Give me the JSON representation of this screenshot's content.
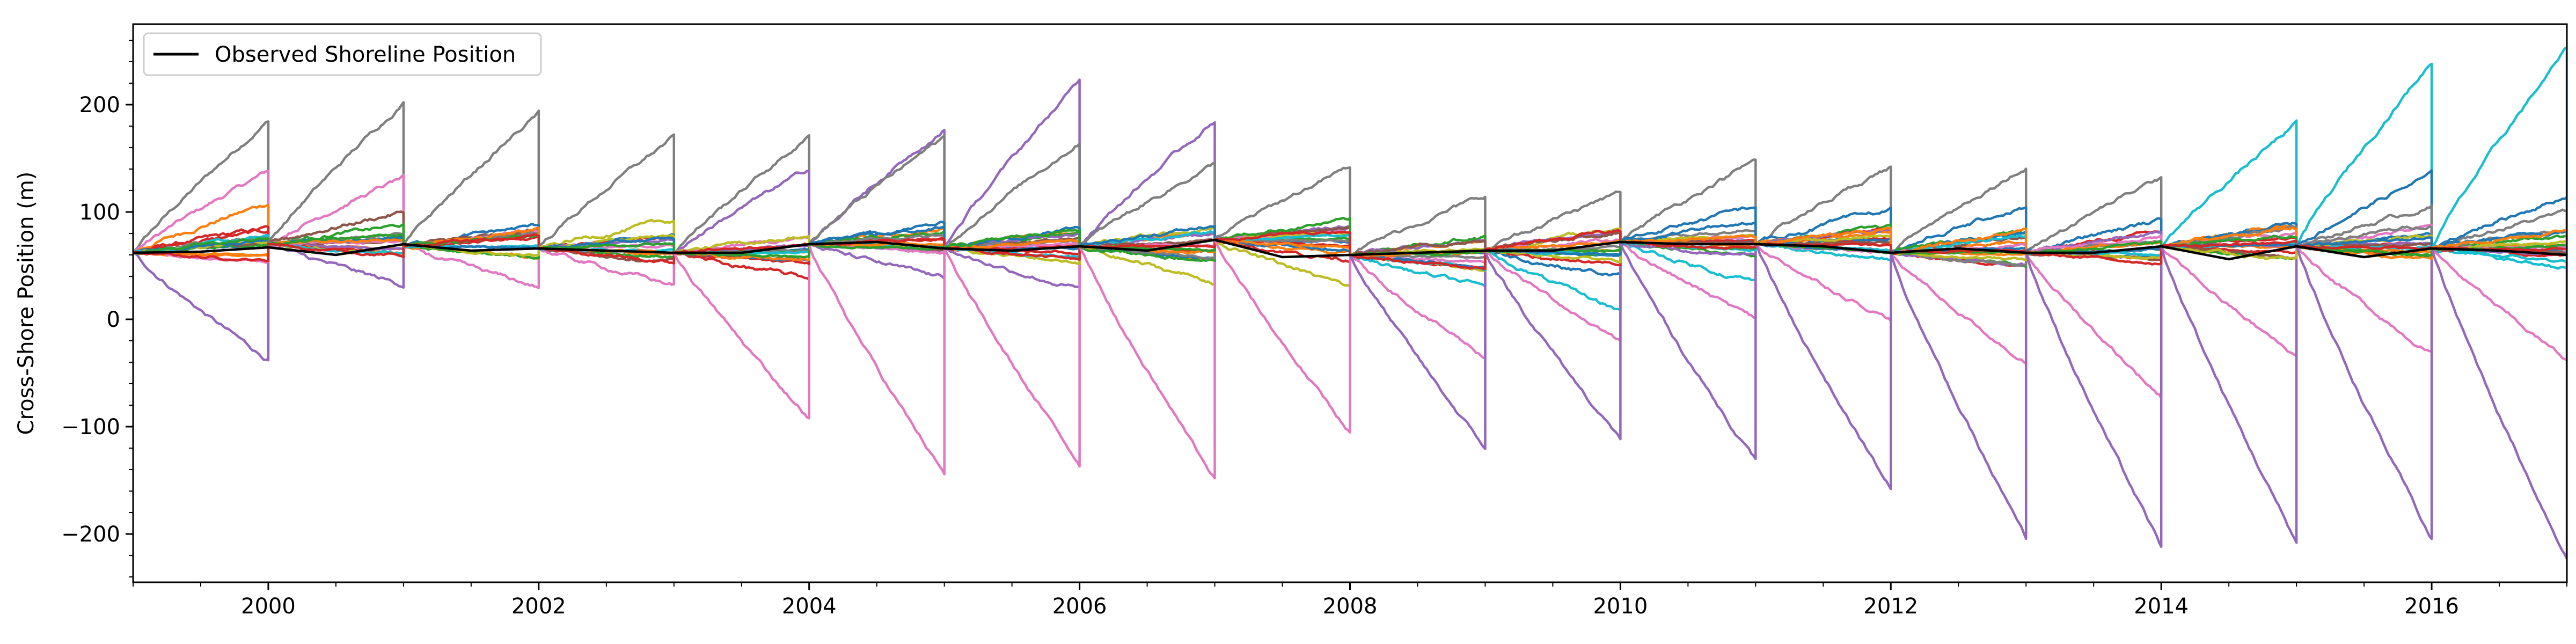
{
  "chart_data": {
    "type": "line",
    "title": "",
    "xlabel": "",
    "ylabel": "Cross-Shore Position (m)",
    "xlim": [
      1999.0,
      2017.0
    ],
    "ylim": [
      -245,
      275
    ],
    "x_ticks": [
      2000,
      2002,
      2004,
      2006,
      2008,
      2010,
      2012,
      2014,
      2016
    ],
    "x_tick_labels": [
      "2000",
      "2002",
      "2004",
      "2006",
      "2008",
      "2010",
      "2012",
      "2014",
      "2016"
    ],
    "y_ticks": [
      -200,
      -100,
      0,
      100,
      200
    ],
    "y_tick_labels": [
      "−200",
      "−100",
      "0",
      "100",
      "200"
    ],
    "grid": false,
    "legend": {
      "placement": "top-left",
      "entries": [
        "Observed Shoreline Position"
      ]
    },
    "observed": {
      "name": "Observed Shoreline Position",
      "color": "#000000",
      "x": [
        1999.0,
        1999.5,
        2000.0,
        2000.5,
        2001.0,
        2001.5,
        2002.0,
        2002.5,
        2003.0,
        2003.5,
        2004.0,
        2004.5,
        2005.0,
        2005.5,
        2006.0,
        2006.5,
        2007.0,
        2007.5,
        2008.0,
        2008.5,
        2009.0,
        2009.5,
        2010.0,
        2010.5,
        2011.0,
        2011.5,
        2012.0,
        2012.5,
        2013.0,
        2013.5,
        2014.0,
        2014.5,
        2015.0,
        2015.5,
        2016.0,
        2016.5,
        2017.0
      ],
      "y": [
        62,
        63,
        67,
        60,
        70,
        64,
        66,
        64,
        62,
        62,
        70,
        72,
        66,
        64,
        68,
        64,
        74,
        58,
        60,
        62,
        64,
        64,
        72,
        70,
        70,
        68,
        62,
        66,
        62,
        62,
        68,
        56,
        68,
        58,
        66,
        64,
        60
      ]
    },
    "ensemble_colors": [
      "#1f77b4",
      "#ff7f0e",
      "#2ca02c",
      "#d62728",
      "#9467bd",
      "#8c564b",
      "#e377c2",
      "#7f7f7f",
      "#bcbd22",
      "#17becf"
    ],
    "forecasts": [
      {
        "start": 1999,
        "start_value": 62,
        "ends": [
          {
            "color": "#7f7f7f",
            "end": 185
          },
          {
            "color": "#e377c2",
            "end": 138
          },
          {
            "color": "#ff7f0e",
            "end": 108
          },
          {
            "color": "#d62728",
            "end": 85
          },
          {
            "color": "#9467bd",
            "end": -38
          }
        ]
      },
      {
        "start": 2000,
        "start_value": 70,
        "ends": [
          {
            "color": "#7f7f7f",
            "end": 202
          },
          {
            "color": "#e377c2",
            "end": 132
          },
          {
            "color": "#8c564b",
            "end": 100
          },
          {
            "color": "#9467bd",
            "end": 32
          }
        ]
      },
      {
        "start": 2001,
        "start_value": 68,
        "ends": [
          {
            "color": "#7f7f7f",
            "end": 192
          },
          {
            "color": "#bcbd22",
            "end": 80
          },
          {
            "color": "#e377c2",
            "end": 30
          }
        ]
      },
      {
        "start": 2002,
        "start_value": 66,
        "ends": [
          {
            "color": "#7f7f7f",
            "end": 170
          },
          {
            "color": "#bcbd22",
            "end": 92
          },
          {
            "color": "#e377c2",
            "end": 32
          }
        ]
      },
      {
        "start": 2003,
        "start_value": 62,
        "ends": [
          {
            "color": "#7f7f7f",
            "end": 170
          },
          {
            "color": "#9467bd",
            "end": 140
          },
          {
            "color": "#d62728",
            "end": 38
          },
          {
            "color": "#e377c2",
            "end": -92
          }
        ]
      },
      {
        "start": 2004,
        "start_value": 70,
        "ends": [
          {
            "color": "#9467bd",
            "end": 178
          },
          {
            "color": "#7f7f7f",
            "end": 170
          },
          {
            "color": "#ff7f0e",
            "end": 85
          },
          {
            "color": "#9467bd",
            "end": 38
          },
          {
            "color": "#e377c2",
            "end": -145
          }
        ]
      },
      {
        "start": 2005,
        "start_value": 66,
        "ends": [
          {
            "color": "#9467bd",
            "end": 222
          },
          {
            "color": "#7f7f7f",
            "end": 165
          },
          {
            "color": "#d62728",
            "end": 62
          },
          {
            "color": "#9467bd",
            "end": 28
          },
          {
            "color": "#e377c2",
            "end": -135
          }
        ]
      },
      {
        "start": 2006,
        "start_value": 68,
        "ends": [
          {
            "color": "#9467bd",
            "end": 185
          },
          {
            "color": "#7f7f7f",
            "end": 145
          },
          {
            "color": "#ff7f0e",
            "end": 55
          },
          {
            "color": "#bcbd22",
            "end": 35
          },
          {
            "color": "#e377c2",
            "end": -148
          }
        ]
      },
      {
        "start": 2007,
        "start_value": 74,
        "ends": [
          {
            "color": "#7f7f7f",
            "end": 142
          },
          {
            "color": "#9467bd",
            "end": 85
          },
          {
            "color": "#d62728",
            "end": 55
          },
          {
            "color": "#bcbd22",
            "end": 30
          },
          {
            "color": "#e377c2",
            "end": -105
          }
        ]
      },
      {
        "start": 2008,
        "start_value": 60,
        "ends": [
          {
            "color": "#7f7f7f",
            "end": 115
          },
          {
            "color": "#bcbd22",
            "end": 65
          },
          {
            "color": "#17becf",
            "end": 30
          },
          {
            "color": "#e377c2",
            "end": -35
          },
          {
            "color": "#9467bd",
            "end": -120
          }
        ]
      },
      {
        "start": 2009,
        "start_value": 64,
        "ends": [
          {
            "color": "#7f7f7f",
            "end": 118
          },
          {
            "color": "#bcbd22",
            "end": 85
          },
          {
            "color": "#1f77b4",
            "end": 40
          },
          {
            "color": "#17becf",
            "end": 8
          },
          {
            "color": "#e377c2",
            "end": -20
          },
          {
            "color": "#9467bd",
            "end": -112
          }
        ]
      },
      {
        "start": 2010,
        "start_value": 72,
        "ends": [
          {
            "color": "#7f7f7f",
            "end": 148
          },
          {
            "color": "#1f77b4",
            "end": 105
          },
          {
            "color": "#8c564b",
            "end": 70
          },
          {
            "color": "#17becf",
            "end": 35
          },
          {
            "color": "#e377c2",
            "end": 0
          },
          {
            "color": "#9467bd",
            "end": -132
          }
        ]
      },
      {
        "start": 2011,
        "start_value": 70,
        "ends": [
          {
            "color": "#7f7f7f",
            "end": 142
          },
          {
            "color": "#1f77b4",
            "end": 102
          },
          {
            "color": "#d62728",
            "end": 75
          },
          {
            "color": "#17becf",
            "end": 55
          },
          {
            "color": "#e377c2",
            "end": 0
          },
          {
            "color": "#9467bd",
            "end": -158
          }
        ]
      },
      {
        "start": 2012,
        "start_value": 62,
        "ends": [
          {
            "color": "#7f7f7f",
            "end": 142
          },
          {
            "color": "#1f77b4",
            "end": 105
          },
          {
            "color": "#2ca02c",
            "end": 82
          },
          {
            "color": "#ff7f0e",
            "end": 60
          },
          {
            "color": "#e377c2",
            "end": -40
          },
          {
            "color": "#9467bd",
            "end": -205
          }
        ]
      },
      {
        "start": 2013,
        "start_value": 62,
        "ends": [
          {
            "color": "#7f7f7f",
            "end": 132
          },
          {
            "color": "#1f77b4",
            "end": 92
          },
          {
            "color": "#d62728",
            "end": 65
          },
          {
            "color": "#e377c2",
            "end": -72
          },
          {
            "color": "#9467bd",
            "end": -212
          }
        ]
      },
      {
        "start": 2014,
        "start_value": 68,
        "ends": [
          {
            "color": "#17becf",
            "end": 182
          },
          {
            "color": "#1f77b4",
            "end": 88
          },
          {
            "color": "#ff7f0e",
            "end": 90
          },
          {
            "color": "#d62728",
            "end": 62
          },
          {
            "color": "#e377c2",
            "end": -35
          },
          {
            "color": "#9467bd",
            "end": -208
          }
        ]
      },
      {
        "start": 2015,
        "start_value": 68,
        "ends": [
          {
            "color": "#17becf",
            "end": 240
          },
          {
            "color": "#1f77b4",
            "end": 135
          },
          {
            "color": "#7f7f7f",
            "end": 105
          },
          {
            "color": "#d62728",
            "end": 60
          },
          {
            "color": "#e377c2",
            "end": -32
          },
          {
            "color": "#9467bd",
            "end": -205
          }
        ]
      },
      {
        "start": 2016,
        "start_value": 66,
        "ends": [
          {
            "color": "#17becf",
            "end": 252
          },
          {
            "color": "#1f77b4",
            "end": 115
          },
          {
            "color": "#7f7f7f",
            "end": 100
          },
          {
            "color": "#ff7f0e",
            "end": 70
          },
          {
            "color": "#17becf",
            "end": 48
          },
          {
            "color": "#e377c2",
            "end": -38
          },
          {
            "color": "#9467bd",
            "end": -222
          }
        ]
      }
    ]
  }
}
